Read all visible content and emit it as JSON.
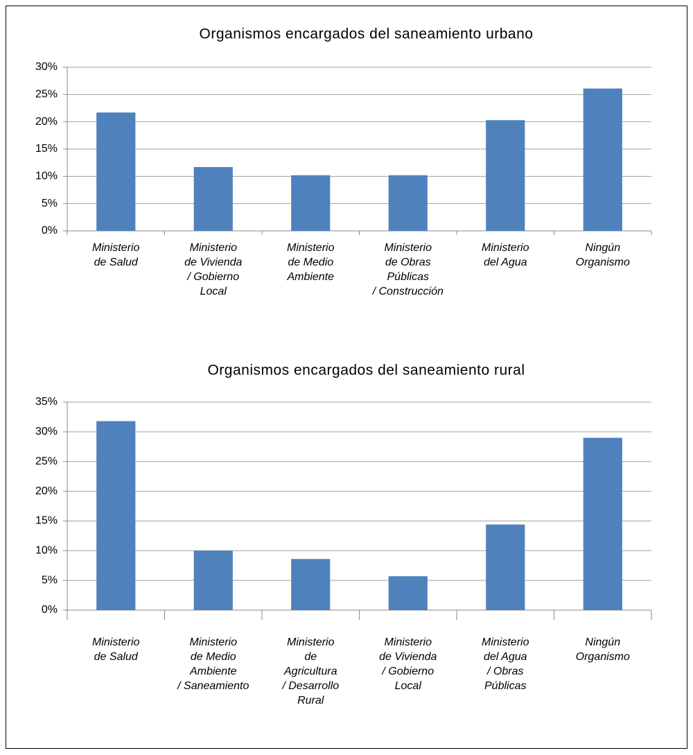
{
  "chart_data": [
    {
      "type": "bar",
      "title": "Organismos encargados del saneamiento urbano",
      "categories": [
        "Ministerio\nde Salud",
        "Ministerio\nde Vivienda\n/ Gobierno\nLocal",
        "Ministerio\nde Medio\nAmbiente",
        "Ministerio\nde Obras\nPúblicas\n/ Construcción",
        "Ministerio\ndel Agua",
        "Ningún\nOrganismo"
      ],
      "values": [
        21.7,
        11.7,
        10.2,
        10.2,
        20.3,
        26.1
      ],
      "color": "#4f81bd",
      "ylim": [
        0,
        30
      ],
      "yticks": [
        {
          "value": 0,
          "label": "0%"
        },
        {
          "value": 5,
          "label": "5%"
        },
        {
          "value": 10,
          "label": "10%"
        },
        {
          "value": 15,
          "label": "15%"
        },
        {
          "value": 20,
          "label": "20%"
        },
        {
          "value": 25,
          "label": "25%"
        },
        {
          "value": 30,
          "label": "30%"
        }
      ],
      "grid": true
    },
    {
      "type": "bar",
      "title": "Organismos encargados del saneamiento rural",
      "categories": [
        "Ministerio\nde Salud",
        "Ministerio\nde Medio\nAmbiente\n/ Saneamiento",
        "Ministerio\nde\nAgricultura\n/ Desarrollo\nRural",
        "Ministerio\nde Vivienda\n/ Gobierno\nLocal",
        "Ministerio\ndel Agua\n/ Obras\nPúblicas",
        "Ningún\nOrganismo"
      ],
      "values": [
        31.8,
        10.0,
        8.6,
        5.7,
        14.4,
        29.0
      ],
      "color": "#4f81bd",
      "ylim": [
        0,
        35
      ],
      "yticks": [
        {
          "value": 0,
          "label": "0%"
        },
        {
          "value": 5,
          "label": "5%"
        },
        {
          "value": 10,
          "label": "10%"
        },
        {
          "value": 15,
          "label": "15%"
        },
        {
          "value": 20,
          "label": "20%"
        },
        {
          "value": 25,
          "label": "25%"
        },
        {
          "value": 30,
          "label": "30%"
        },
        {
          "value": 35,
          "label": "35%"
        }
      ],
      "grid": true
    }
  ]
}
